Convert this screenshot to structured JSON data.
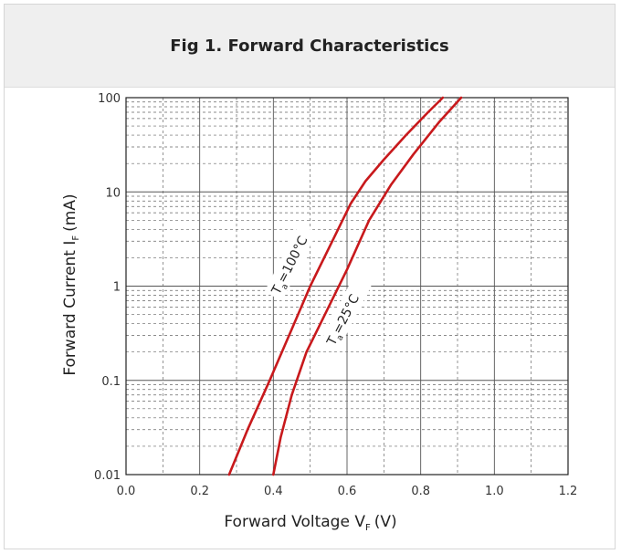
{
  "title": "Fig 1. Forward Characteristics",
  "chart_data": {
    "type": "line",
    "title": "Fig 1. Forward Characteristics",
    "xlabel_main": "Forward Voltage V",
    "xlabel_sub": "F",
    "xlabel_unit": "(V)",
    "ylabel_main": "Forward Current I",
    "ylabel_sub": "F",
    "ylabel_unit": "(mA)",
    "x_ticks": [
      "0.0",
      "0.2",
      "0.4",
      "0.6",
      "0.8",
      "1.0",
      "1.2"
    ],
    "y_ticks": [
      "0.01",
      "0.1",
      "1",
      "10",
      "100"
    ],
    "xlim": [
      0,
      1.2
    ],
    "ylim": [
      0.01,
      100
    ],
    "yscale": "log",
    "grid": true,
    "series": [
      {
        "name": "Ta=100°C",
        "label_main": "T",
        "label_sub": "a",
        "label_rest": "=100°C",
        "color": "#c8191c",
        "x": [
          0.28,
          0.33,
          0.39,
          0.45,
          0.5,
          0.56,
          0.61,
          0.65,
          0.7,
          0.76,
          0.82,
          0.86
        ],
        "y": [
          0.01,
          0.03,
          0.1,
          0.35,
          1.0,
          3.0,
          7.5,
          13,
          22,
          40,
          70,
          100
        ]
      },
      {
        "name": "Ta=25°C",
        "label_main": "T",
        "label_sub": "a",
        "label_rest": "=25°C",
        "color": "#c8191c",
        "x": [
          0.4,
          0.42,
          0.45,
          0.49,
          0.54,
          0.6,
          0.66,
          0.72,
          0.78,
          0.85,
          0.91
        ],
        "y": [
          0.01,
          0.025,
          0.07,
          0.2,
          0.5,
          1.5,
          5.0,
          12,
          25,
          55,
          100
        ]
      }
    ]
  }
}
